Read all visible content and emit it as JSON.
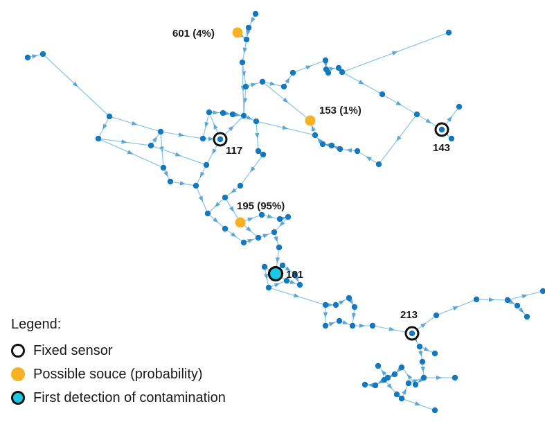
{
  "colors": {
    "edge": "#8FC7E6",
    "node": "#1478BE",
    "source": "#F6B224",
    "first_detection": "#1AC9E6",
    "sensor_ring": "#111111"
  },
  "labels": {
    "source_601": "601 (4%)",
    "source_153": "153 (1%)",
    "source_195": "195 (95%)",
    "sensor_117": "117",
    "sensor_143": "143",
    "sensor_181": "181",
    "sensor_213": "213"
  },
  "legend": {
    "title": "Legend:",
    "fixed_sensor": "Fixed sensor",
    "possible_source": "Possible souce (probability)",
    "first_detection": "First detection of contamination"
  }
}
